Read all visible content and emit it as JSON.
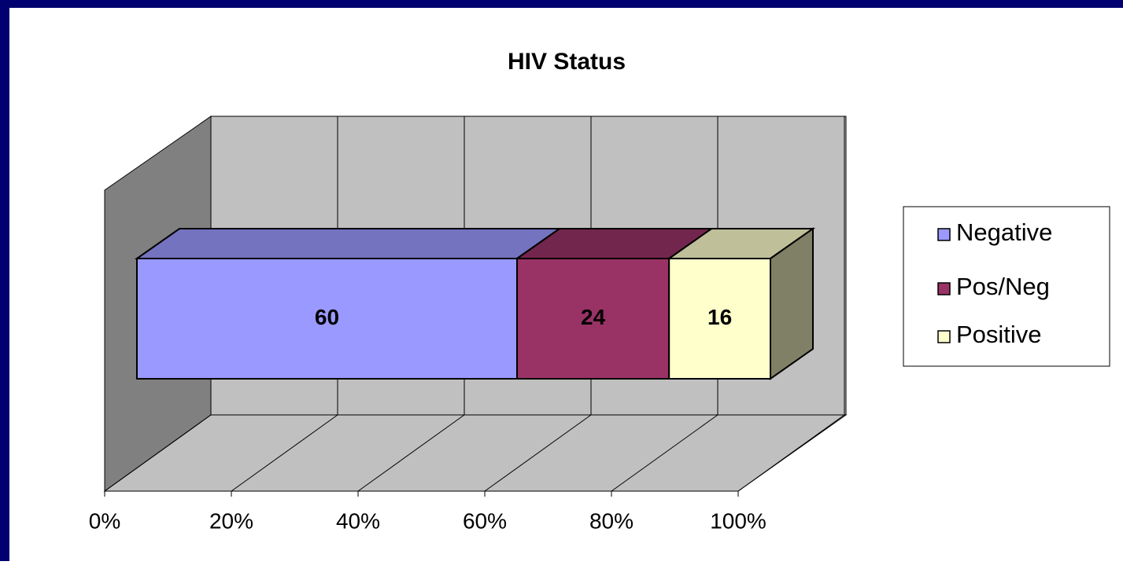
{
  "chart_data": {
    "type": "bar_stacked_3d_horizontal",
    "title": "HIV Status",
    "series": [
      {
        "name": "Negative",
        "color": "#9999ff",
        "values": [
          60
        ]
      },
      {
        "name": "Pos/Neg",
        "color": "#993366",
        "values": [
          24
        ]
      },
      {
        "name": "Positive",
        "color": "#ffffcc",
        "values": [
          16
        ]
      }
    ],
    "xlim": [
      0,
      100
    ],
    "xticks": [
      {
        "value": 0,
        "label": "0%"
      },
      {
        "value": 20,
        "label": "20%"
      },
      {
        "value": 40,
        "label": "40%"
      },
      {
        "value": 60,
        "label": "60%"
      },
      {
        "value": 80,
        "label": "80%"
      },
      {
        "value": 100,
        "label": "100%"
      }
    ],
    "grid": true,
    "legend": "right"
  }
}
